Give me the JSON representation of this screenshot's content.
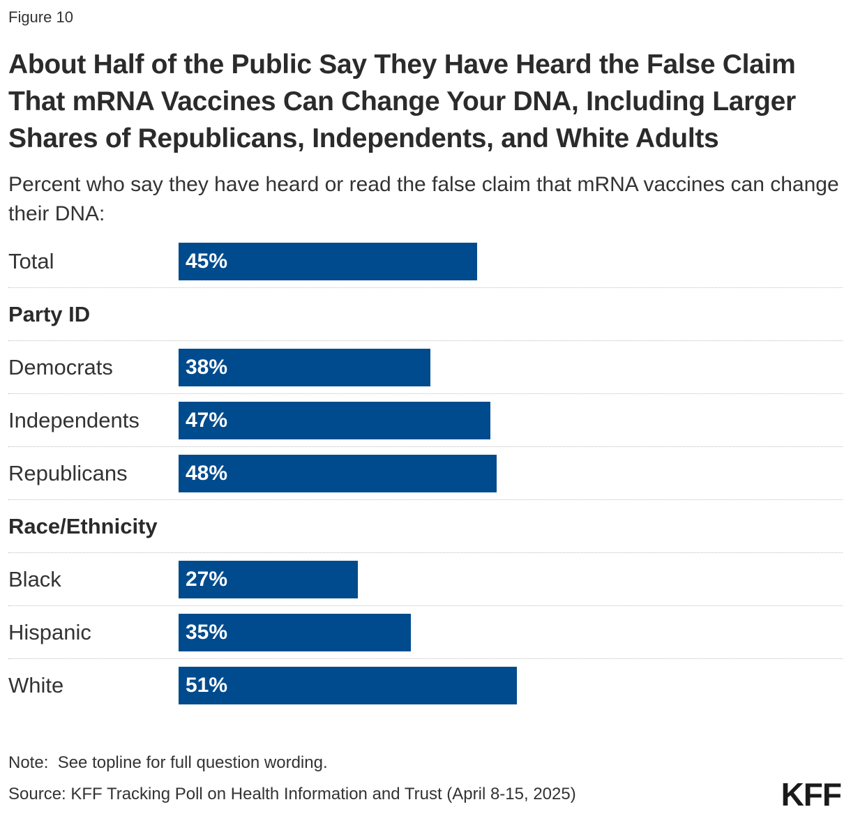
{
  "figure_label": "Figure 10",
  "title": "About Half of the Public Say They Have Heard the False Claim That mRNA Vaccines Can Change Your DNA, Including Larger Shares of Republicans, Independents, and White Adults",
  "subtitle": "Percent who say they have heard or read the false claim that mRNA vaccines can change their DNA:",
  "chart_data": {
    "type": "bar",
    "orientation": "horizontal",
    "title": "About Half of the Public Say They Have Heard the False Claim That mRNA Vaccines Can Change Your DNA, Including Larger Shares of Republicans, Independents, and White Adults",
    "xlabel": "",
    "ylabel": "",
    "xlim": [
      0,
      100
    ],
    "bar_color": "#004b8d",
    "rows": [
      {
        "kind": "item",
        "label": "Total",
        "value": 45,
        "display": "45%"
      },
      {
        "kind": "group",
        "label": "Party ID"
      },
      {
        "kind": "item",
        "label": "Democrats",
        "value": 38,
        "display": "38%"
      },
      {
        "kind": "item",
        "label": "Independents",
        "value": 47,
        "display": "47%"
      },
      {
        "kind": "item",
        "label": "Republicans",
        "value": 48,
        "display": "48%"
      },
      {
        "kind": "group",
        "label": "Race/Ethnicity"
      },
      {
        "kind": "item",
        "label": "Black",
        "value": 27,
        "display": "27%"
      },
      {
        "kind": "item",
        "label": "Hispanic",
        "value": 35,
        "display": "35%"
      },
      {
        "kind": "item",
        "label": "White",
        "value": 51,
        "display": "51%"
      }
    ]
  },
  "note": "Note:  See topline for full question wording.",
  "source": "Source: KFF Tracking Poll on Health Information and Trust (April 8-15, 2025)",
  "logo_text": "KFF"
}
